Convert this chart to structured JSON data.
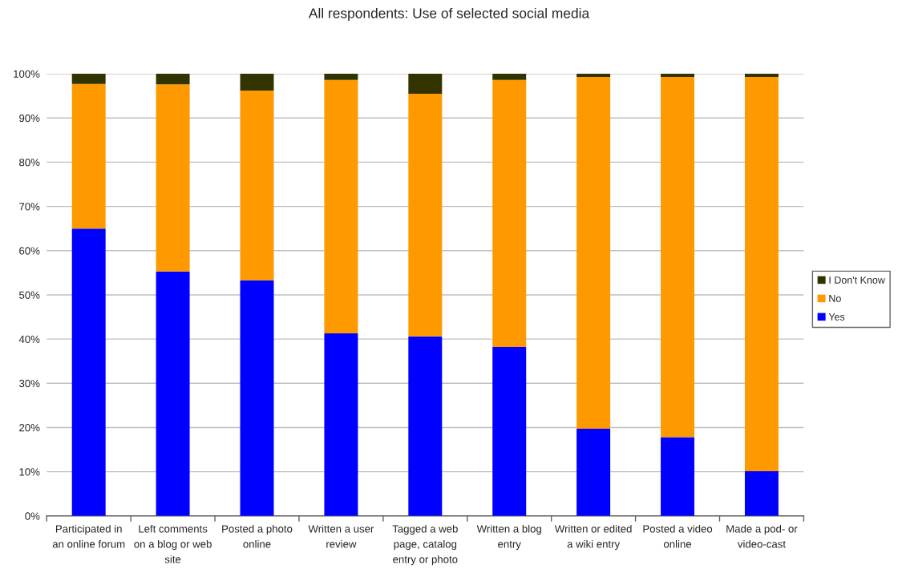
{
  "chart_data": {
    "type": "bar",
    "title": "All respondents: Use of selected social media",
    "categories": [
      "Participated in an online forum",
      "Left comments on a blog or web site",
      "Posted a photo online",
      "Written a user review",
      "Tagged a web page, catalog entry or photo",
      "Written a blog entry",
      "Written or edited a wiki entry",
      "Posted a video online",
      "Made a pod- or video-cast"
    ],
    "series": [
      {
        "name": "Yes",
        "color": "#0000ff",
        "values": [
          65.0,
          55.3,
          53.3,
          41.3,
          40.6,
          38.2,
          19.7,
          17.8,
          10.1
        ]
      },
      {
        "name": "No",
        "color": "#ff9900",
        "values": [
          32.7,
          42.3,
          42.9,
          57.3,
          54.9,
          60.4,
          79.6,
          81.5,
          89.2
        ]
      },
      {
        "name": "I Don't Know",
        "color": "#333300",
        "values": [
          2.3,
          2.4,
          3.8,
          1.4,
          4.5,
          1.4,
          0.7,
          0.7,
          0.7
        ]
      }
    ],
    "stacked": true,
    "ylim": [
      0,
      100
    ],
    "yticks": [
      {
        "value": 0,
        "label": "0%"
      },
      {
        "value": 10,
        "label": "10%"
      },
      {
        "value": 20,
        "label": "20%"
      },
      {
        "value": 30,
        "label": "30%"
      },
      {
        "value": 40,
        "label": "40%"
      },
      {
        "value": 50,
        "label": "50%"
      },
      {
        "value": 60,
        "label": "60%"
      },
      {
        "value": 70,
        "label": "70%"
      },
      {
        "value": 80,
        "label": "80%"
      },
      {
        "value": 90,
        "label": "90%"
      },
      {
        "value": 100,
        "label": "100%"
      }
    ],
    "grid": "y",
    "legend": "right"
  }
}
